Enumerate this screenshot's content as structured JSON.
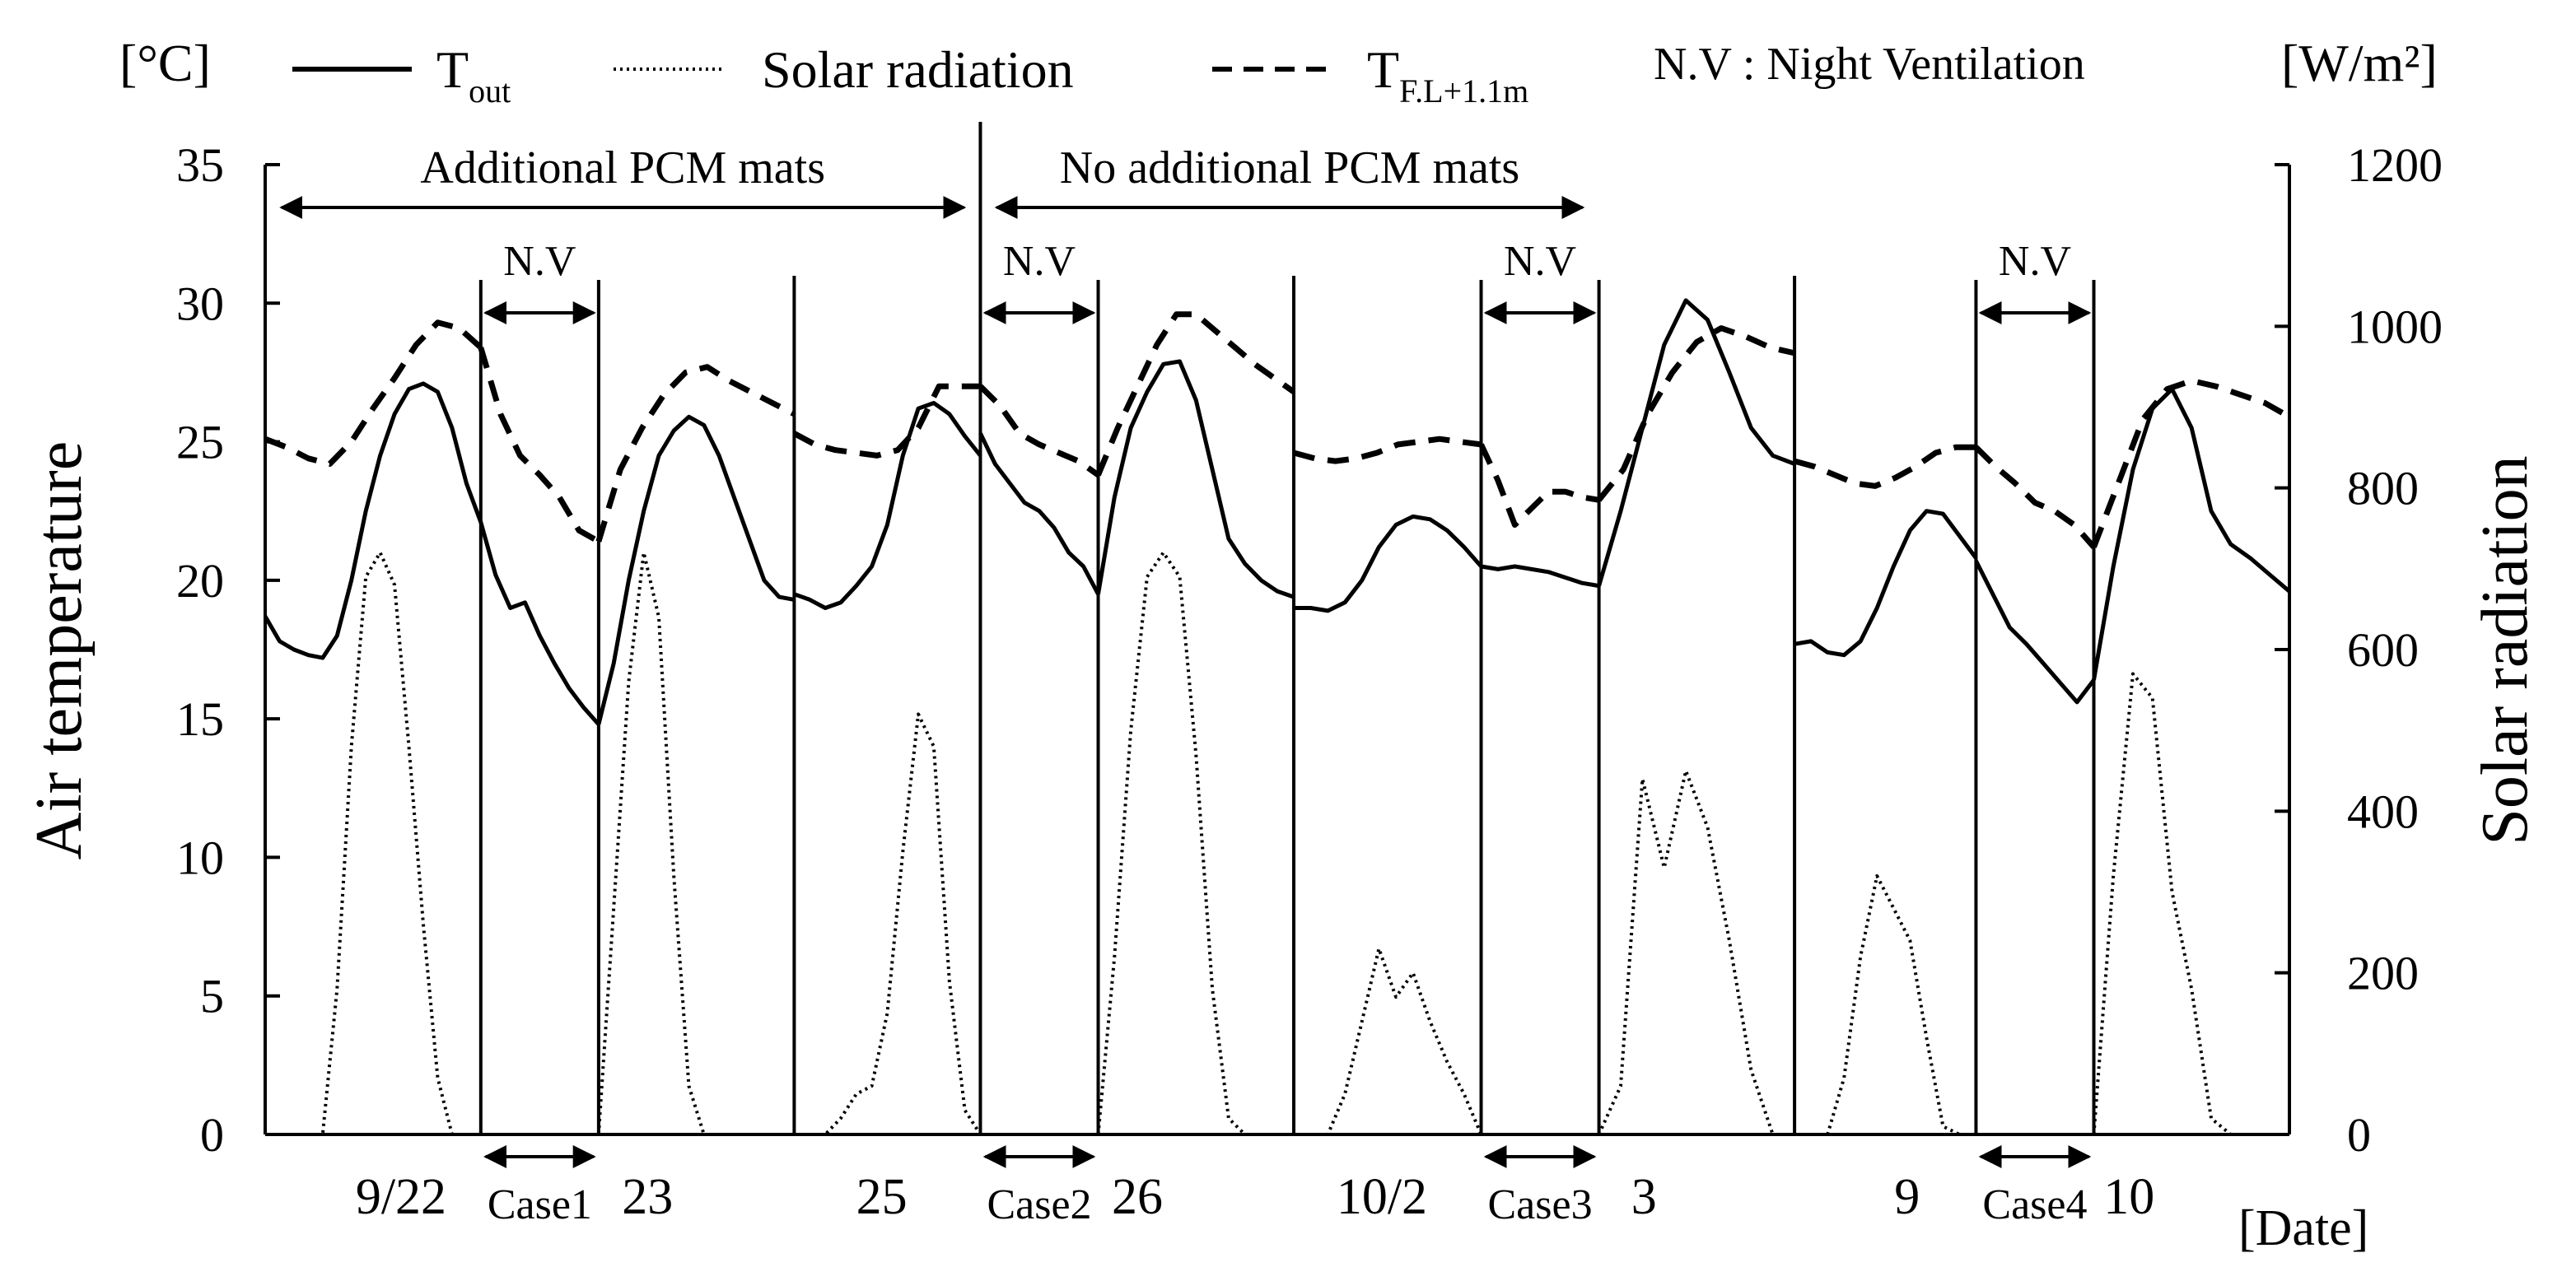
{
  "chart_data": {
    "type": "line",
    "title": "",
    "ylabel_left": "Air temperature",
    "ylabel_right": "Solar radiation",
    "unit_left": "[°C]",
    "unit_right": "[W/m²]",
    "xlabel": "[Date]",
    "ylim_left": [
      0,
      35
    ],
    "ylim_right": [
      0,
      1200
    ],
    "left_ticks": [
      0,
      5,
      10,
      15,
      20,
      25,
      30,
      35
    ],
    "right_ticks": [
      0,
      200,
      400,
      600,
      800,
      1000,
      1200
    ],
    "grid": false,
    "legend": [
      {
        "key": "tout",
        "main": "T",
        "sub": "out",
        "style": "solid"
      },
      {
        "key": "solar",
        "main": "Solar radiation",
        "sub": "",
        "style": "dotted"
      },
      {
        "key": "tfl",
        "main": "T",
        "sub": "F.L+1.1m",
        "style": "dashed"
      }
    ],
    "legend_note": "N.V : Night Ventilation",
    "regions": [
      {
        "label": "Additional PCM mats",
        "start_panel": 0,
        "end_panel": 3
      },
      {
        "label": "No additional PCM mats",
        "start_panel": 4,
        "end_panel": 7
      }
    ],
    "nv_label": "N.V",
    "night_ventilation_periods": [
      {
        "case": "Case1",
        "panel": 1
      },
      {
        "case": "Case2",
        "panel": 4
      },
      {
        "case": "Case3",
        "panel": 7
      },
      {
        "case": "Case4",
        "panel": 10
      }
    ],
    "panel_widths": [
      1.83,
      1.0,
      1.66,
      1.58,
      1.0,
      1.66,
      1.59,
      1.0,
      1.66,
      1.54,
      1.0,
      1.66
    ],
    "date_labels": [
      {
        "text": "9/22",
        "panel": 0,
        "frac": 0.63
      },
      {
        "text": "23",
        "panel": 2,
        "frac": 0.25
      },
      {
        "text": "25",
        "panel": 3,
        "frac": 0.47
      },
      {
        "text": "26",
        "panel": 5,
        "frac": 0.2
      },
      {
        "text": "10/2",
        "panel": 6,
        "frac": 0.47
      },
      {
        "text": "3",
        "panel": 8,
        "frac": 0.23
      },
      {
        "text": "9",
        "panel": 9,
        "frac": 0.62
      },
      {
        "text": "10",
        "panel": 11,
        "frac": 0.18
      }
    ],
    "series": [
      {
        "name": "T_out",
        "axis": "left",
        "style": "solid",
        "segments": [
          {
            "panel": 0,
            "values": [
              18.7,
              17.8,
              17.5,
              17.3,
              17.2,
              18.0,
              20.0,
              22.5,
              24.5,
              26.0,
              26.9,
              27.1,
              26.8,
              25.5,
              23.5,
              22.1
            ]
          },
          {
            "panel": 1,
            "values": [
              22.1,
              20.2,
              19.0,
              19.2,
              18.0,
              17.0,
              16.1,
              15.4,
              14.8
            ]
          },
          {
            "panel": 2,
            "values": [
              14.8,
              17.0,
              20.0,
              22.5,
              24.5,
              25.4,
              25.9,
              25.6,
              24.5,
              23.0,
              21.5,
              20.0,
              19.4,
              19.3
            ]
          },
          {
            "panel": 3,
            "values": [
              19.5,
              19.3,
              19.0,
              19.2,
              19.8,
              20.5,
              22.0,
              24.5,
              26.2,
              26.4,
              26.0,
              25.2,
              24.5
            ]
          },
          {
            "panel": 4,
            "values": [
              25.3,
              24.2,
              23.5,
              22.8,
              22.5,
              21.9,
              21.0,
              20.5,
              19.5
            ]
          },
          {
            "panel": 5,
            "values": [
              19.5,
              23.0,
              25.5,
              26.8,
              27.8,
              27.9,
              26.5,
              24.0,
              21.5,
              20.6,
              20.0,
              19.6,
              19.4
            ]
          },
          {
            "panel": 6,
            "values": [
              19.0,
              19.0,
              18.9,
              19.2,
              20.0,
              21.2,
              22.0,
              22.3,
              22.2,
              21.8,
              21.2,
              20.5
            ]
          },
          {
            "panel": 7,
            "values": [
              20.5,
              20.4,
              20.5,
              20.4,
              20.3,
              20.1,
              19.9,
              19.8
            ]
          },
          {
            "panel": 8,
            "values": [
              19.8,
              22.5,
              25.5,
              28.5,
              30.1,
              29.4,
              27.5,
              25.5,
              24.5,
              24.2
            ]
          },
          {
            "panel": 9,
            "values": [
              17.7,
              17.8,
              17.4,
              17.3,
              17.8,
              19.0,
              20.5,
              21.8,
              22.5,
              22.4,
              21.6,
              20.8
            ]
          },
          {
            "panel": 10,
            "values": [
              20.7,
              19.5,
              18.3,
              17.7,
              17.0,
              16.3,
              15.6,
              16.4
            ]
          },
          {
            "panel": 11,
            "values": [
              16.4,
              20.5,
              24.0,
              26.2,
              26.9,
              25.5,
              22.5,
              21.3,
              20.8,
              20.2,
              19.6
            ]
          }
        ]
      },
      {
        "name": "T_F.L+1.1m",
        "axis": "left",
        "style": "dashed",
        "segments": [
          {
            "panel": 0,
            "values": [
              25.1,
              24.8,
              24.4,
              24.2,
              25.0,
              26.2,
              27.3,
              28.5,
              29.3,
              29.1,
              28.4
            ]
          },
          {
            "panel": 1,
            "values": [
              28.4,
              26.0,
              24.5,
              23.8,
              23.0,
              21.8,
              21.4
            ]
          },
          {
            "panel": 2,
            "values": [
              21.4,
              24.0,
              25.5,
              26.7,
              27.5,
              27.7,
              27.2,
              26.8,
              26.4,
              26.0
            ]
          },
          {
            "panel": 3,
            "values": [
              25.3,
              24.9,
              24.7,
              24.6,
              24.5,
              24.7,
              25.5,
              27.0,
              27.0,
              27.0
            ]
          },
          {
            "panel": 4,
            "values": [
              27.0,
              26.3,
              25.3,
              24.9,
              24.6,
              24.3,
              23.8
            ]
          },
          {
            "panel": 5,
            "values": [
              23.8,
              25.5,
              27.0,
              28.5,
              29.6,
              29.6,
              29.0,
              28.4,
              27.8,
              27.3,
              26.8
            ]
          },
          {
            "panel": 6,
            "values": [
              24.6,
              24.4,
              24.3,
              24.4,
              24.6,
              24.9,
              25.0,
              25.1,
              25.0,
              24.9
            ]
          },
          {
            "panel": 7,
            "values": [
              24.9,
              23.6,
              22.0,
              22.6,
              23.2,
              23.2,
              23.0,
              22.9
            ]
          },
          {
            "panel": 8,
            "values": [
              22.9,
              24.0,
              26.0,
              27.5,
              28.6,
              29.1,
              28.8,
              28.4,
              28.2
            ]
          },
          {
            "panel": 9,
            "values": [
              24.3,
              24.1,
              23.8,
              23.5,
              23.4,
              23.7,
              24.1,
              24.6,
              24.8,
              24.8
            ]
          },
          {
            "panel": 10,
            "values": [
              24.8,
              24.1,
              23.5,
              22.8,
              22.5,
              22.0,
              21.2
            ]
          },
          {
            "panel": 11,
            "values": [
              21.2,
              23.5,
              25.8,
              26.9,
              27.2,
              27.0,
              26.7,
              26.4,
              25.9
            ]
          }
        ]
      },
      {
        "name": "Solar radiation",
        "axis": "right",
        "style": "dotted",
        "segments": [
          {
            "panel": 0,
            "values": [
              0,
              0,
              0,
              0,
              0,
              180,
              480,
              690,
              720,
              680,
              480,
              260,
              70,
              0,
              0,
              0
            ]
          },
          {
            "panel": 1,
            "values": [
              0,
              0,
              0,
              0,
              0,
              0,
              0,
              0,
              0
            ]
          },
          {
            "panel": 2,
            "values": [
              0,
              280,
              560,
              720,
              640,
              320,
              60,
              0,
              0,
              0,
              0,
              0,
              0,
              0
            ]
          },
          {
            "panel": 3,
            "values": [
              0,
              0,
              0,
              20,
              50,
              60,
              150,
              350,
              520,
              480,
              190,
              30,
              0
            ]
          },
          {
            "panel": 4,
            "values": [
              0,
              0,
              0,
              0,
              0,
              0,
              0,
              0,
              0
            ]
          },
          {
            "panel": 5,
            "values": [
              0,
              220,
              500,
              690,
              720,
              690,
              470,
              180,
              20,
              0,
              0,
              0,
              0
            ]
          },
          {
            "panel": 6,
            "values": [
              0,
              0,
              0,
              50,
              140,
              230,
              170,
              200,
              140,
              90,
              50,
              0
            ]
          },
          {
            "panel": 7,
            "values": [
              0,
              0,
              0,
              0,
              0,
              0,
              0,
              0
            ]
          },
          {
            "panel": 8,
            "values": [
              0,
              60,
              440,
              330,
              450,
              380,
              240,
              80,
              0,
              0
            ]
          },
          {
            "panel": 9,
            "values": [
              0,
              0,
              0,
              70,
              220,
              320,
              280,
              240,
              120,
              10,
              0,
              0
            ]
          },
          {
            "panel": 10,
            "values": [
              0,
              0,
              0,
              0,
              0,
              0,
              0,
              0
            ]
          },
          {
            "panel": 11,
            "values": [
              0,
              320,
              570,
              540,
              300,
              180,
              20,
              0,
              0,
              0,
              0
            ]
          }
        ]
      }
    ]
  }
}
